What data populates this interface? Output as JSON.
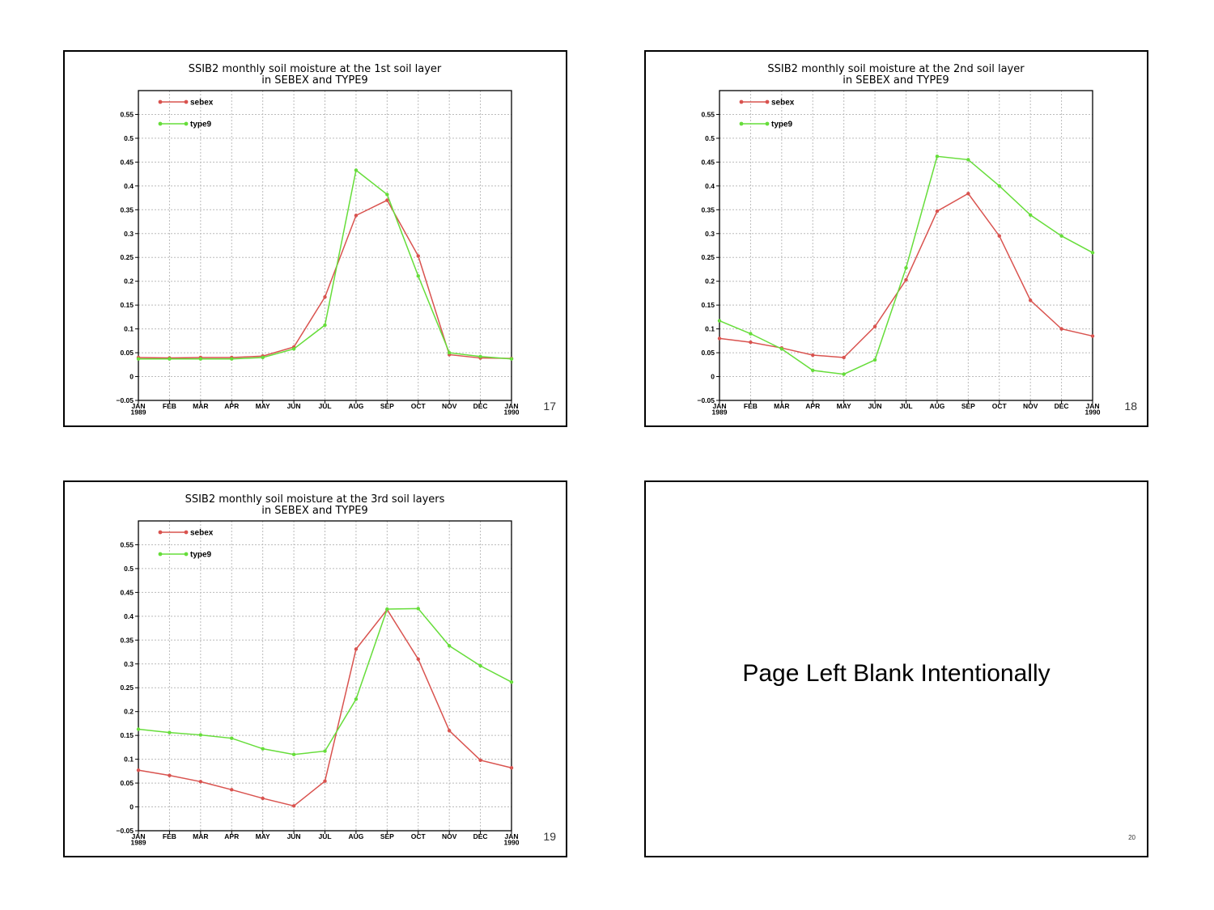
{
  "slides": [
    {
      "page": "17"
    },
    {
      "page": "18"
    },
    {
      "page": "19"
    },
    {
      "page": "20",
      "message": "Page Left Blank Intentionally"
    }
  ],
  "chart_data": [
    {
      "type": "line",
      "title": [
        "SSIB2 monthly soil moisture at the 1st soil layer",
        "in SEBEX and TYPE9"
      ],
      "xlabel": "",
      "ylabel": "",
      "x_tick_labels": [
        "JAN\n1989",
        "FEB",
        "MAR",
        "APR",
        "MAY",
        "JUN",
        "JUL",
        "AUG",
        "SEP",
        "OCT",
        "NOV",
        "DEC",
        "JAN\n1990"
      ],
      "y_tick_labels": [
        "−0.05",
        "0",
        "0.05",
        "0.1",
        "0.15",
        "0.2",
        "0.25",
        "0.3",
        "0.35",
        "0.4",
        "0.45",
        "0.5",
        "0.55"
      ],
      "ylim": [
        -0.05,
        0.6
      ],
      "grid": true,
      "legend": "top-left",
      "series": [
        {
          "name": "sebex",
          "color": "#d9534f",
          "values": [
            0.04,
            0.039,
            0.04,
            0.04,
            0.043,
            0.062,
            0.167,
            0.338,
            0.37,
            0.253,
            0.046,
            0.039,
            0.038
          ]
        },
        {
          "name": "type9",
          "color": "#66dd3a",
          "values": [
            0.037,
            0.037,
            0.037,
            0.037,
            0.04,
            0.058,
            0.108,
            0.433,
            0.382,
            0.211,
            0.05,
            0.042,
            0.037
          ]
        }
      ]
    },
    {
      "type": "line",
      "title": [
        "SSIB2 monthly soil moisture at the 2nd soil layer",
        "in SEBEX and TYPE9"
      ],
      "xlabel": "",
      "ylabel": "",
      "x_tick_labels": [
        "JAN\n1989",
        "FEB",
        "MAR",
        "APR",
        "MAY",
        "JUN",
        "JUL",
        "AUG",
        "SEP",
        "OCT",
        "NOV",
        "DEC",
        "JAN\n1990"
      ],
      "y_tick_labels": [
        "−0.05",
        "0",
        "0.05",
        "0.1",
        "0.15",
        "0.2",
        "0.25",
        "0.3",
        "0.35",
        "0.4",
        "0.45",
        "0.5",
        "0.55"
      ],
      "ylim": [
        -0.05,
        0.6
      ],
      "grid": true,
      "legend": "top-left",
      "series": [
        {
          "name": "sebex",
          "color": "#d9534f",
          "values": [
            0.08,
            0.072,
            0.06,
            0.045,
            0.04,
            0.105,
            0.203,
            0.347,
            0.384,
            0.295,
            0.16,
            0.1,
            0.085
          ]
        },
        {
          "name": "type9",
          "color": "#66dd3a",
          "values": [
            0.117,
            0.09,
            0.058,
            0.013,
            0.005,
            0.035,
            0.228,
            0.462,
            0.455,
            0.4,
            0.339,
            0.295,
            0.26
          ]
        }
      ]
    },
    {
      "type": "line",
      "title": [
        "SSIB2 monthly soil moisture at the 3rd soil layers",
        "in SEBEX and TYPE9"
      ],
      "xlabel": "",
      "ylabel": "",
      "x_tick_labels": [
        "JAN\n1989",
        "FEB",
        "MAR",
        "APR",
        "MAY",
        "JUN",
        "JUL",
        "AUG",
        "SEP",
        "OCT",
        "NOV",
        "DEC",
        "JAN\n1990"
      ],
      "y_tick_labels": [
        "−0.05",
        "0",
        "0.05",
        "0.1",
        "0.15",
        "0.2",
        "0.25",
        "0.3",
        "0.35",
        "0.4",
        "0.45",
        "0.5",
        "0.55"
      ],
      "ylim": [
        -0.05,
        0.6
      ],
      "grid": true,
      "legend": "top-left",
      "series": [
        {
          "name": "sebex",
          "color": "#d9534f",
          "values": [
            0.077,
            0.066,
            0.053,
            0.036,
            0.018,
            0.002,
            0.054,
            0.331,
            0.414,
            0.31,
            0.16,
            0.098,
            0.082
          ]
        },
        {
          "name": "type9",
          "color": "#66dd3a",
          "values": [
            0.163,
            0.156,
            0.151,
            0.144,
            0.122,
            0.11,
            0.117,
            0.226,
            0.415,
            0.416,
            0.338,
            0.296,
            0.262
          ]
        }
      ]
    }
  ]
}
